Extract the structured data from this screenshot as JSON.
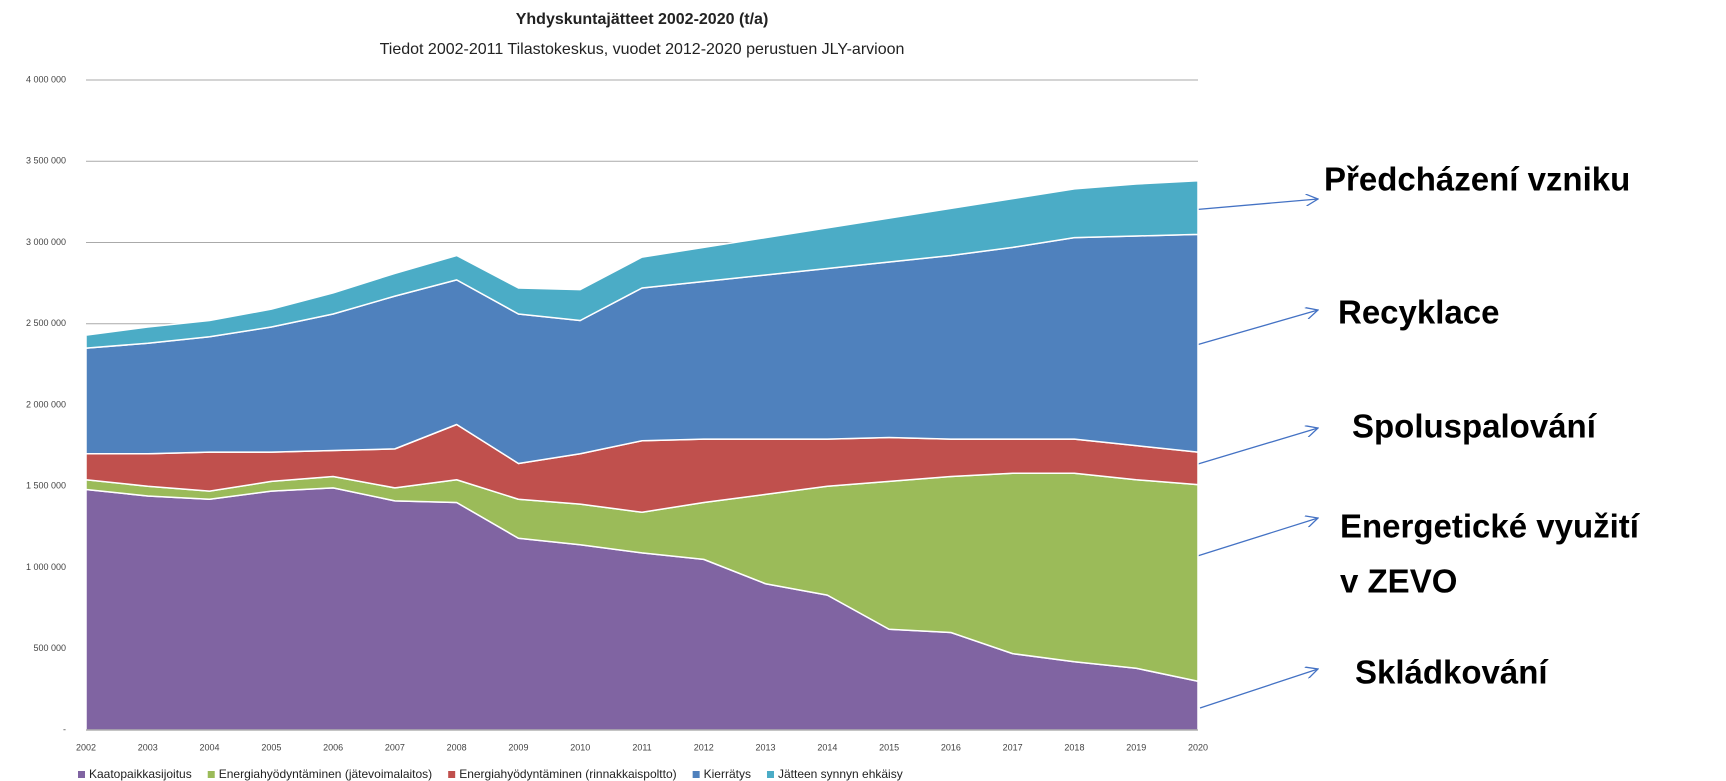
{
  "chart_data": {
    "type": "stacked-area",
    "title": "Yhdyskuntajätteet 2002-2020 (t/a)",
    "subtitle": "Tiedot 2002-2011 Tilastokeskus, vuodet 2012-2020 perustuen JLY-arvioon",
    "categories": [
      "2002",
      "2003",
      "2004",
      "2005",
      "2006",
      "2007",
      "2008",
      "2009",
      "2010",
      "2011",
      "2012",
      "2013",
      "2014",
      "2015",
      "2016",
      "2017",
      "2018",
      "2019",
      "2020"
    ],
    "series": [
      {
        "name": "Kaatopaikkasijoitus",
        "color": "#8064a2",
        "values": [
          1480000,
          1440000,
          1420000,
          1470000,
          1490000,
          1410000,
          1400000,
          1180000,
          1140000,
          1090000,
          1050000,
          900000,
          830000,
          620000,
          600000,
          470000,
          420000,
          380000,
          300000
        ]
      },
      {
        "name": "Energiahyödyntäminen (jätevoimalaitos)",
        "color": "#9bbb59",
        "values": [
          60000,
          60000,
          50000,
          60000,
          70000,
          80000,
          140000,
          240000,
          250000,
          250000,
          350000,
          550000,
          670000,
          910000,
          960000,
          1110000,
          1160000,
          1160000,
          1210000
        ]
      },
      {
        "name": "Energiahyödyntäminen (rinnakkaispoltto)",
        "color": "#c0504d",
        "values": [
          160000,
          200000,
          240000,
          180000,
          160000,
          240000,
          340000,
          220000,
          310000,
          440000,
          390000,
          340000,
          290000,
          270000,
          230000,
          210000,
          210000,
          210000,
          200000
        ]
      },
      {
        "name": "Kierrätys",
        "color": "#4f81bd",
        "values": [
          650000,
          680000,
          710000,
          770000,
          840000,
          940000,
          890000,
          920000,
          820000,
          940000,
          970000,
          1010000,
          1050000,
          1080000,
          1130000,
          1180000,
          1240000,
          1290000,
          1340000
        ]
      },
      {
        "name": "Jätteen synnyn ehkäisy",
        "color": "#4bacc6",
        "values": [
          80000,
          100000,
          100000,
          110000,
          130000,
          140000,
          150000,
          160000,
          190000,
          190000,
          210000,
          230000,
          250000,
          270000,
          290000,
          300000,
          300000,
          320000,
          330000
        ]
      }
    ],
    "ylim": [
      0,
      4000000
    ],
    "yticks": [
      {
        "value": 0,
        "label": "-"
      },
      {
        "value": 500000,
        "label": "500 000"
      },
      {
        "value": 1000000,
        "label": "1 000 000"
      },
      {
        "value": 1500000,
        "label": "1 500 000"
      },
      {
        "value": 2000000,
        "label": "2 000 000"
      },
      {
        "value": 2500000,
        "label": "2 500 000"
      },
      {
        "value": 3000000,
        "label": "3 000 000"
      },
      {
        "value": 3500000,
        "label": "3 500 000"
      },
      {
        "value": 4000000,
        "label": "4 000 000"
      }
    ],
    "grid": true,
    "legend": "bottom",
    "annotations": [
      [
        "Předcházení vzniku"
      ],
      [
        "Recyklace"
      ],
      [
        "Spoluspalování"
      ],
      [
        "Energetické využití",
        "v ZEVO"
      ],
      [
        "Skládkování"
      ]
    ]
  }
}
